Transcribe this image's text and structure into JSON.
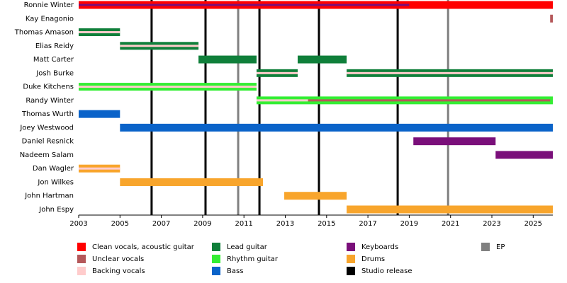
{
  "chart_data": {
    "type": "timeline",
    "xlim": [
      2003,
      2025.95
    ],
    "xticks": [
      2003,
      2005,
      2007,
      2009,
      2011,
      2013,
      2015,
      2017,
      2019,
      2021,
      2023,
      2025
    ],
    "categories": [
      "Ronnie Winter",
      "Kay Enagonio",
      "Thomas Amason",
      "Elias Reidy",
      "Matt Carter",
      "Josh Burke",
      "Duke Kitchens",
      "Randy Winter",
      "Thomas Wurth",
      "Joey Westwood",
      "Daniel Resnick",
      "Nadeem Salam",
      "Dan Wagler",
      "Jon Wilkes",
      "John Hartman",
      "John Espy"
    ],
    "series": [
      {
        "name": "Clean vocals, acoustic guitar",
        "color": "#ff0000",
        "spans": [
          {
            "member": "Ronnie Winter",
            "start": 2003,
            "end": 2025.95
          }
        ]
      },
      {
        "name": "Unclear vocals",
        "color": "#b5585a",
        "spans": [
          {
            "member": "Kay Enagonio",
            "start": 2025.82,
            "end": 2025.95
          },
          {
            "member": "Randy Winter",
            "start": 2014.1,
            "end": 2025.82,
            "secondary": true
          }
        ]
      },
      {
        "name": "Backing vocals",
        "color": "#ffcccc",
        "spans": [
          {
            "member": "Thomas Amason",
            "start": 2003,
            "end": 2005,
            "secondary": true
          },
          {
            "member": "Elias Reidy",
            "start": 2005,
            "end": 2008.8,
            "secondary": true
          },
          {
            "member": "Josh Burke",
            "start": 2011.61,
            "end": 2013.6,
            "secondary": true
          },
          {
            "member": "Josh Burke",
            "start": 2015.97,
            "end": 2025.95,
            "secondary": true
          },
          {
            "member": "Duke Kitchens",
            "start": 2003,
            "end": 2011.61,
            "secondary": true
          },
          {
            "member": "Randy Winter",
            "start": 2011.61,
            "end": 2014.1,
            "secondary": true
          },
          {
            "member": "Dan Wagler",
            "start": 2003,
            "end": 2005,
            "secondary": true
          }
        ]
      },
      {
        "name": "Lead guitar",
        "color": "#0f7f3a",
        "spans": [
          {
            "member": "Thomas Amason",
            "start": 2003,
            "end": 2005
          },
          {
            "member": "Elias Reidy",
            "start": 2005,
            "end": 2008.8
          },
          {
            "member": "Matt Carter",
            "start": 2008.8,
            "end": 2011.61
          },
          {
            "member": "Matt Carter",
            "start": 2013.6,
            "end": 2015.97
          },
          {
            "member": "Josh Burke",
            "start": 2011.61,
            "end": 2013.6
          },
          {
            "member": "Josh Burke",
            "start": 2015.97,
            "end": 2025.95
          }
        ]
      },
      {
        "name": "Rhythm guitar",
        "color": "#33ee33",
        "spans": [
          {
            "member": "Duke Kitchens",
            "start": 2003,
            "end": 2011.61
          },
          {
            "member": "Randy Winter",
            "start": 2011.61,
            "end": 2025.95
          }
        ]
      },
      {
        "name": "Bass",
        "color": "#0a63c9",
        "spans": [
          {
            "member": "Thomas Wurth",
            "start": 2003,
            "end": 2005
          },
          {
            "member": "Joey Westwood",
            "start": 2005,
            "end": 2025.95
          }
        ]
      },
      {
        "name": "Keyboards",
        "color": "#7a0f7a",
        "spans": [
          {
            "member": "Ronnie Winter",
            "start": 2003,
            "end": 2019,
            "secondary": true
          },
          {
            "member": "Daniel Resnick",
            "start": 2019.2,
            "end": 2023.18
          },
          {
            "member": "Nadeem Salam",
            "start": 2023.18,
            "end": 2025.95
          }
        ]
      },
      {
        "name": "Drums",
        "color": "#f8a52c",
        "spans": [
          {
            "member": "Dan Wagler",
            "start": 2003,
            "end": 2005
          },
          {
            "member": "Jon Wilkes",
            "start": 2005,
            "end": 2011.92
          },
          {
            "member": "John Hartman",
            "start": 2012.95,
            "end": 2015.97
          },
          {
            "member": "John Espy",
            "start": 2015.97,
            "end": 2025.95
          }
        ]
      }
    ],
    "markers": [
      {
        "name": "Studio release",
        "color": "#000000",
        "x": [
          2006.53,
          2009.14,
          2011.75,
          2014.63,
          2018.44
        ]
      },
      {
        "name": "EP",
        "color": "#808080",
        "x": [
          2010.72,
          2020.88
        ]
      }
    ]
  }
}
